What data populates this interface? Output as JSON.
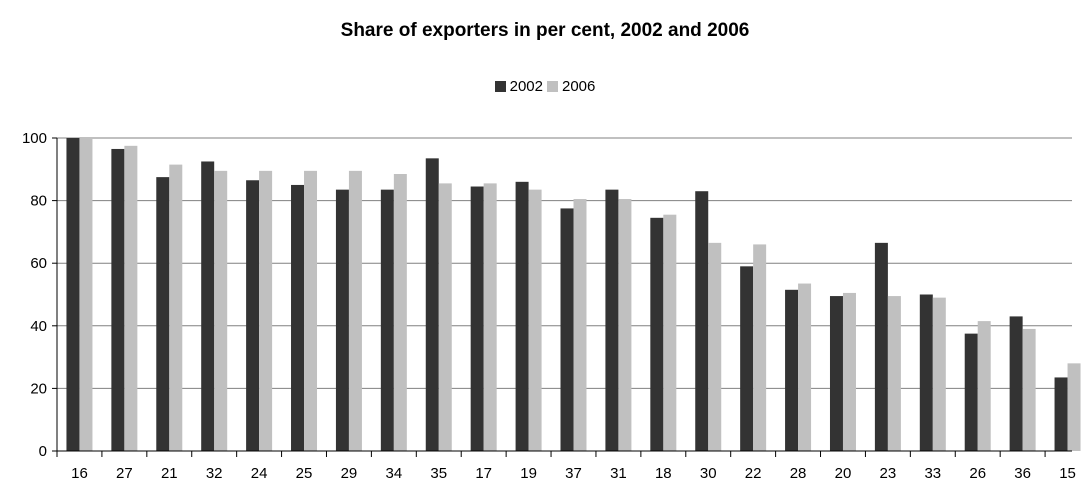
{
  "chart_data": {
    "type": "bar",
    "title": "Share of exporters in per cent, 2002 and 2006",
    "xlabel": "",
    "ylabel": "",
    "ylim": [
      0,
      100
    ],
    "yticks": [
      0,
      20,
      40,
      60,
      80,
      100
    ],
    "grid": "horizontal",
    "legend_position": "top-center",
    "categories": [
      "16",
      "27",
      "21",
      "32",
      "24",
      "25",
      "29",
      "34",
      "35",
      "17",
      "19",
      "37",
      "31",
      "18",
      "30",
      "22",
      "28",
      "20",
      "23",
      "33",
      "26",
      "36",
      "15"
    ],
    "series": [
      {
        "name": "2002",
        "color": "#333333",
        "values": [
          100,
          96.5,
          87.5,
          92.5,
          86.5,
          85,
          83.5,
          83.5,
          93.5,
          84.5,
          86,
          77.5,
          83.5,
          74.5,
          83,
          59,
          51.5,
          49.5,
          66.5,
          50,
          37.5,
          43,
          23.5
        ]
      },
      {
        "name": "2006",
        "color": "#c0c0c0",
        "values": [
          100,
          97.5,
          91.5,
          89.5,
          89.5,
          89.5,
          89.5,
          88.5,
          85.5,
          85.5,
          83.5,
          80.5,
          80.5,
          75.5,
          66.5,
          66,
          53.5,
          50.5,
          49.5,
          49,
          41.5,
          39,
          28
        ]
      }
    ]
  }
}
